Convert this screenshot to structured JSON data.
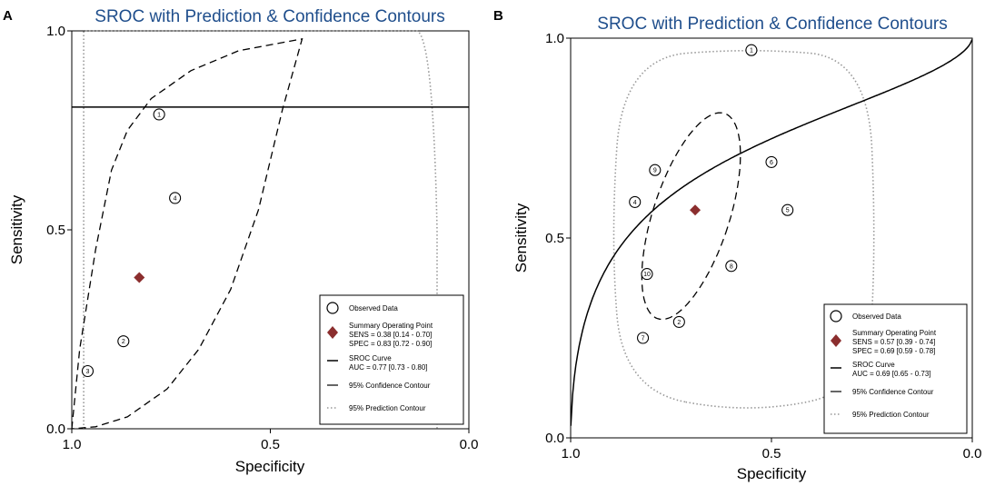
{
  "chart_data": [
    {
      "type": "scatter",
      "panel_label": "A",
      "title": "SROC with Prediction & Confidence Contours",
      "xlabel": "Specificity",
      "ylabel": "Sensitivity",
      "xlim": [
        1.0,
        0.0
      ],
      "ylim": [
        0.0,
        1.0
      ],
      "x_ticks": [
        "1.0",
        "0.5",
        "0.0"
      ],
      "y_ticks": [
        "0.0",
        "0.5",
        "1.0"
      ],
      "studies": [
        {
          "id": "1",
          "spec": 0.78,
          "sens": 0.79
        },
        {
          "id": "2",
          "spec": 0.87,
          "sens": 0.22
        },
        {
          "id": "3",
          "spec": 0.96,
          "sens": 0.145
        },
        {
          "id": "4",
          "spec": 0.74,
          "sens": 0.58
        }
      ],
      "summary": {
        "spec": 0.83,
        "sens": 0.38
      },
      "sroc": {
        "a": 1.44,
        "b": -1.0
      },
      "conf_contour_upper": [
        [
          1.0,
          0.0
        ],
        [
          0.98,
          0.2
        ],
        [
          0.94,
          0.45
        ],
        [
          0.9,
          0.65
        ],
        [
          0.86,
          0.75
        ],
        [
          0.8,
          0.83
        ],
        [
          0.7,
          0.9
        ],
        [
          0.58,
          0.95
        ],
        [
          0.42,
          0.98
        ]
      ],
      "conf_contour_lower": [
        [
          0.42,
          0.98
        ],
        [
          0.47,
          0.8
        ],
        [
          0.53,
          0.55
        ],
        [
          0.6,
          0.35
        ],
        [
          0.68,
          0.2
        ],
        [
          0.76,
          0.1
        ],
        [
          0.86,
          0.03
        ],
        [
          0.94,
          0.005
        ],
        [
          1.0,
          0.0
        ]
      ],
      "pred_contour": [
        [
          0.97,
          0.0
        ],
        [
          0.97,
          0.3
        ],
        [
          0.97,
          1.0
        ],
        [
          0.13,
          1.0
        ],
        [
          0.09,
          0.98
        ],
        [
          0.08,
          0.5
        ],
        [
          0.08,
          0.0
        ]
      ],
      "legend": {
        "observed": "Observed Data",
        "summary": "Summary Operating Point",
        "sens": "SENS = 0.38 [0.14 - 0.70]",
        "spec": "SPEC = 0.83 [0.72 - 0.90]",
        "curve": "SROC Curve",
        "auc": "AUC = 0.77 [0.73 - 0.80]",
        "conf": "95% Confidence Contour",
        "pred": "95% Prediction Contour"
      }
    },
    {
      "type": "scatter",
      "panel_label": "B",
      "title": "SROC with Prediction & Confidence Contours",
      "xlabel": "Specificity",
      "ylabel": "Sensitivity",
      "xlim": [
        1.0,
        0.0
      ],
      "ylim": [
        0.0,
        1.0
      ],
      "x_ticks": [
        "1.0",
        "0.5",
        "0.0"
      ],
      "y_ticks": [
        "0.0",
        "0.5",
        "1.0"
      ],
      "studies": [
        {
          "id": "1",
          "spec": 0.55,
          "sens": 0.97
        },
        {
          "id": "2",
          "spec": 0.73,
          "sens": 0.29
        },
        {
          "id": "4",
          "spec": 0.84,
          "sens": 0.59
        },
        {
          "id": "5",
          "spec": 0.46,
          "sens": 0.57
        },
        {
          "id": "6",
          "spec": 0.5,
          "sens": 0.69
        },
        {
          "id": "7",
          "spec": 0.82,
          "sens": 0.25
        },
        {
          "id": "8",
          "spec": 0.6,
          "sens": 0.43
        },
        {
          "id": "9",
          "spec": 0.79,
          "sens": 0.67
        },
        {
          "id": "10",
          "spec": 0.81,
          "sens": 0.41
        }
      ],
      "summary": {
        "spec": 0.69,
        "sens": 0.57
      },
      "sroc": {
        "a": 1.09,
        "b": -0.4
      },
      "conf_ellipse": {
        "spec": 0.7,
        "sens": 0.555,
        "r_spec": 0.095,
        "r_sens": 0.27,
        "angle_deg": 18
      },
      "pred_contour": [
        [
          0.87,
          0.12
        ],
        [
          0.9,
          0.5
        ],
        [
          0.87,
          0.95
        ],
        [
          0.55,
          0.975
        ],
        [
          0.26,
          0.95
        ],
        [
          0.24,
          0.5
        ],
        [
          0.26,
          0.12
        ],
        [
          0.56,
          0.06
        ]
      ],
      "legend": {
        "observed": "Observed Data",
        "summary": "Summary Operating Point",
        "sens": "SENS = 0.57 [0.39 - 0.74]",
        "spec": "SPEC = 0.69 [0.59 - 0.78]",
        "curve": "SROC Curve",
        "auc": "AUC = 0.69 [0.65 - 0.73]",
        "conf": "95% Confidence Contour",
        "pred": "95% Prediction Contour"
      }
    }
  ],
  "colors": {
    "title": "#1f4e8c",
    "summary_point": "#8b2e2e",
    "prediction": "#999999",
    "axis": "#000000"
  }
}
